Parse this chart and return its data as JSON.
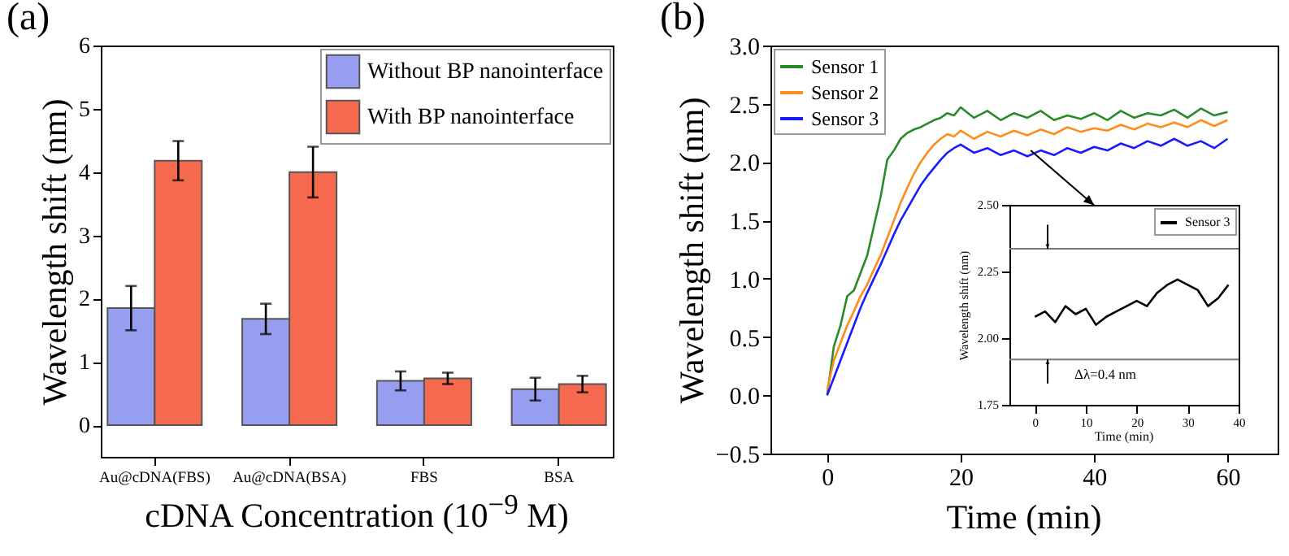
{
  "chart_data": [
    {
      "type": "bar",
      "title": "(a)",
      "xlabel": "cDNA Concentration (10$^{−9}$ M)",
      "ylabel": "Wavelength shift (nm)",
      "categories": [
        "Au@cDNA(FBS)",
        "Au@cDNA(BSA)",
        "FBS",
        "BSA"
      ],
      "series": [
        {
          "name": "Without BP nanointerface",
          "color": "#979ef0",
          "values": [
            1.85,
            1.68,
            0.7,
            0.57
          ],
          "errors": [
            0.35,
            0.24,
            0.15,
            0.18
          ]
        },
        {
          "name": "With BP nanointerface",
          "color": "#f56a4f",
          "values": [
            4.18,
            4.0,
            0.74,
            0.65
          ],
          "errors": [
            0.31,
            0.4,
            0.09,
            0.13
          ]
        }
      ],
      "ylim": [
        -0.5,
        6
      ],
      "yticks": [
        0,
        1,
        2,
        3,
        4,
        5,
        6
      ],
      "legend": "top right"
    },
    {
      "type": "line",
      "title": "(b)",
      "xlabel": "Time (min)",
      "ylabel": "Wavelength shift (nm)",
      "x": [
        0,
        1,
        2,
        3,
        4,
        5,
        6,
        7,
        8,
        9,
        10,
        11,
        12,
        13,
        14,
        15,
        16,
        17,
        18,
        19,
        20,
        22,
        24,
        26,
        28,
        30,
        32,
        34,
        36,
        38,
        40,
        42,
        44,
        46,
        48,
        50,
        52,
        54,
        56,
        58,
        60
      ],
      "series": [
        {
          "name": "Sensor 1",
          "color": "#2a8a2a",
          "values": [
            0,
            0.42,
            0.6,
            0.85,
            0.9,
            1.05,
            1.2,
            1.45,
            1.7,
            2.02,
            2.1,
            2.2,
            2.25,
            2.28,
            2.3,
            2.33,
            2.36,
            2.38,
            2.42,
            2.4,
            2.47,
            2.38,
            2.44,
            2.36,
            2.42,
            2.38,
            2.44,
            2.36,
            2.4,
            2.37,
            2.42,
            2.36,
            2.44,
            2.38,
            2.42,
            2.4,
            2.45,
            2.38,
            2.46,
            2.4,
            2.43
          ]
        },
        {
          "name": "Sensor 2",
          "color": "#ff8c1a",
          "values": [
            0.05,
            0.3,
            0.45,
            0.6,
            0.72,
            0.85,
            0.95,
            1.08,
            1.2,
            1.35,
            1.5,
            1.65,
            1.78,
            1.9,
            2.0,
            2.08,
            2.15,
            2.2,
            2.24,
            2.22,
            2.27,
            2.2,
            2.26,
            2.22,
            2.27,
            2.23,
            2.28,
            2.24,
            2.3,
            2.26,
            2.29,
            2.27,
            2.32,
            2.28,
            2.33,
            2.3,
            2.34,
            2.3,
            2.36,
            2.31,
            2.36
          ]
        },
        {
          "name": "Sensor 3",
          "color": "#1a1aff",
          "values": [
            0,
            0.15,
            0.3,
            0.45,
            0.6,
            0.75,
            0.88,
            1.0,
            1.12,
            1.25,
            1.38,
            1.5,
            1.6,
            1.7,
            1.8,
            1.88,
            1.95,
            2.02,
            2.08,
            2.12,
            2.15,
            2.08,
            2.12,
            2.06,
            2.1,
            2.05,
            2.1,
            2.06,
            2.12,
            2.08,
            2.13,
            2.1,
            2.16,
            2.12,
            2.18,
            2.14,
            2.2,
            2.14,
            2.18,
            2.12,
            2.2
          ]
        }
      ],
      "xlim": [
        -8.5,
        67.5
      ],
      "xticks": [
        0,
        20,
        40,
        60
      ],
      "ylim": [
        -0.5,
        3
      ],
      "yticks": [
        {
          "value": -0.5,
          "label": "−0.5"
        },
        {
          "value": 0,
          "label": "0.0"
        },
        {
          "value": 0.5,
          "label": "0.5"
        },
        {
          "value": 1,
          "label": "1.0"
        },
        {
          "value": 1.5,
          "label": "1.5"
        },
        {
          "value": 2,
          "label": "2.0"
        },
        {
          "value": 2.5,
          "label": "2.5"
        },
        {
          "value": 3,
          "label": "3.0"
        }
      ],
      "legend": "top left",
      "marker": "none",
      "line_style": "solid"
    },
    {
      "type": "line",
      "xlabel": "Time (min)",
      "ylabel": "Wavelength shift (nm)",
      "x": [
        0,
        2,
        4,
        6,
        8,
        10,
        12,
        14,
        16,
        18,
        20,
        22,
        24,
        26,
        28,
        30,
        32,
        34,
        36,
        38
      ],
      "series": [
        {
          "name": "Sensor 3",
          "color": "#000000",
          "values": [
            2.08,
            2.1,
            2.06,
            2.12,
            2.09,
            2.11,
            2.05,
            2.08,
            2.1,
            2.12,
            2.14,
            2.12,
            2.17,
            2.2,
            2.22,
            2.2,
            2.18,
            2.12,
            2.15,
            2.2
          ]
        }
      ],
      "xlim": [
        -5,
        40
      ],
      "xticks": [
        0,
        10,
        20,
        30,
        40
      ],
      "ylim": [
        1.75,
        2.5
      ],
      "yticks": [
        {
          "value": 1.75,
          "label": "1.75"
        },
        {
          "value": 2,
          "label": "2.00"
        },
        {
          "value": 2.25,
          "label": "2.25"
        },
        {
          "value": 2.5,
          "label": "2.50"
        }
      ],
      "ref_lines": [
        {
          "axis": "y",
          "value": 2.335,
          "color": "#777777"
        },
        {
          "axis": "y",
          "value": 1.92,
          "color": "#777777"
        }
      ],
      "annotations": [
        "Δλ=0.4 nm"
      ],
      "legend": "top right",
      "marker": "none",
      "line_style": "solid"
    }
  ]
}
